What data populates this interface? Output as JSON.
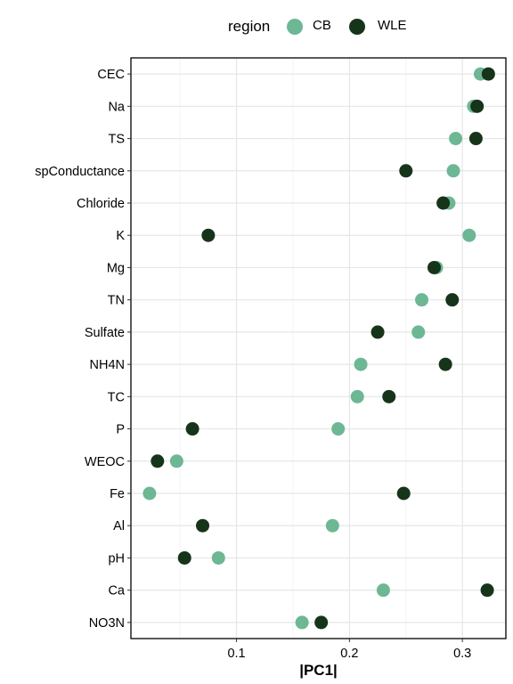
{
  "legend": {
    "title": "region",
    "items": [
      {
        "label": "CB",
        "color": "#6db794"
      },
      {
        "label": "WLE",
        "color": "#16341a"
      }
    ]
  },
  "chart_data": {
    "type": "scatter",
    "title": "",
    "xlabel": "|PC1|",
    "ylabel": "",
    "xlim": [
      0.0065,
      0.3385
    ],
    "x_ticks": [
      "0.1",
      "0.2",
      "0.3"
    ],
    "x_tick_values": [
      0.1,
      0.2,
      0.3
    ],
    "categories": [
      "CEC",
      "Na",
      "TS",
      "spConductance",
      "Chloride",
      "K",
      "Mg",
      "TN",
      "Sulfate",
      "NH4N",
      "TC",
      "P",
      "WEOC",
      "Fe",
      "Al",
      "pH",
      "Ca",
      "NO3N"
    ],
    "series": [
      {
        "name": "CB",
        "color": "#6db794",
        "values": [
          0.316,
          0.31,
          0.294,
          0.292,
          0.288,
          0.306,
          0.277,
          0.264,
          0.261,
          0.21,
          0.207,
          0.19,
          0.047,
          0.023,
          0.185,
          0.084,
          0.23,
          0.158
        ]
      },
      {
        "name": "WLE",
        "color": "#16341a",
        "values": [
          0.323,
          0.313,
          0.312,
          0.25,
          0.283,
          0.075,
          0.275,
          0.291,
          0.225,
          0.285,
          0.235,
          0.061,
          0.03,
          0.248,
          0.07,
          0.054,
          0.322,
          0.175
        ]
      }
    ],
    "grid": true,
    "legend_position": "top"
  }
}
